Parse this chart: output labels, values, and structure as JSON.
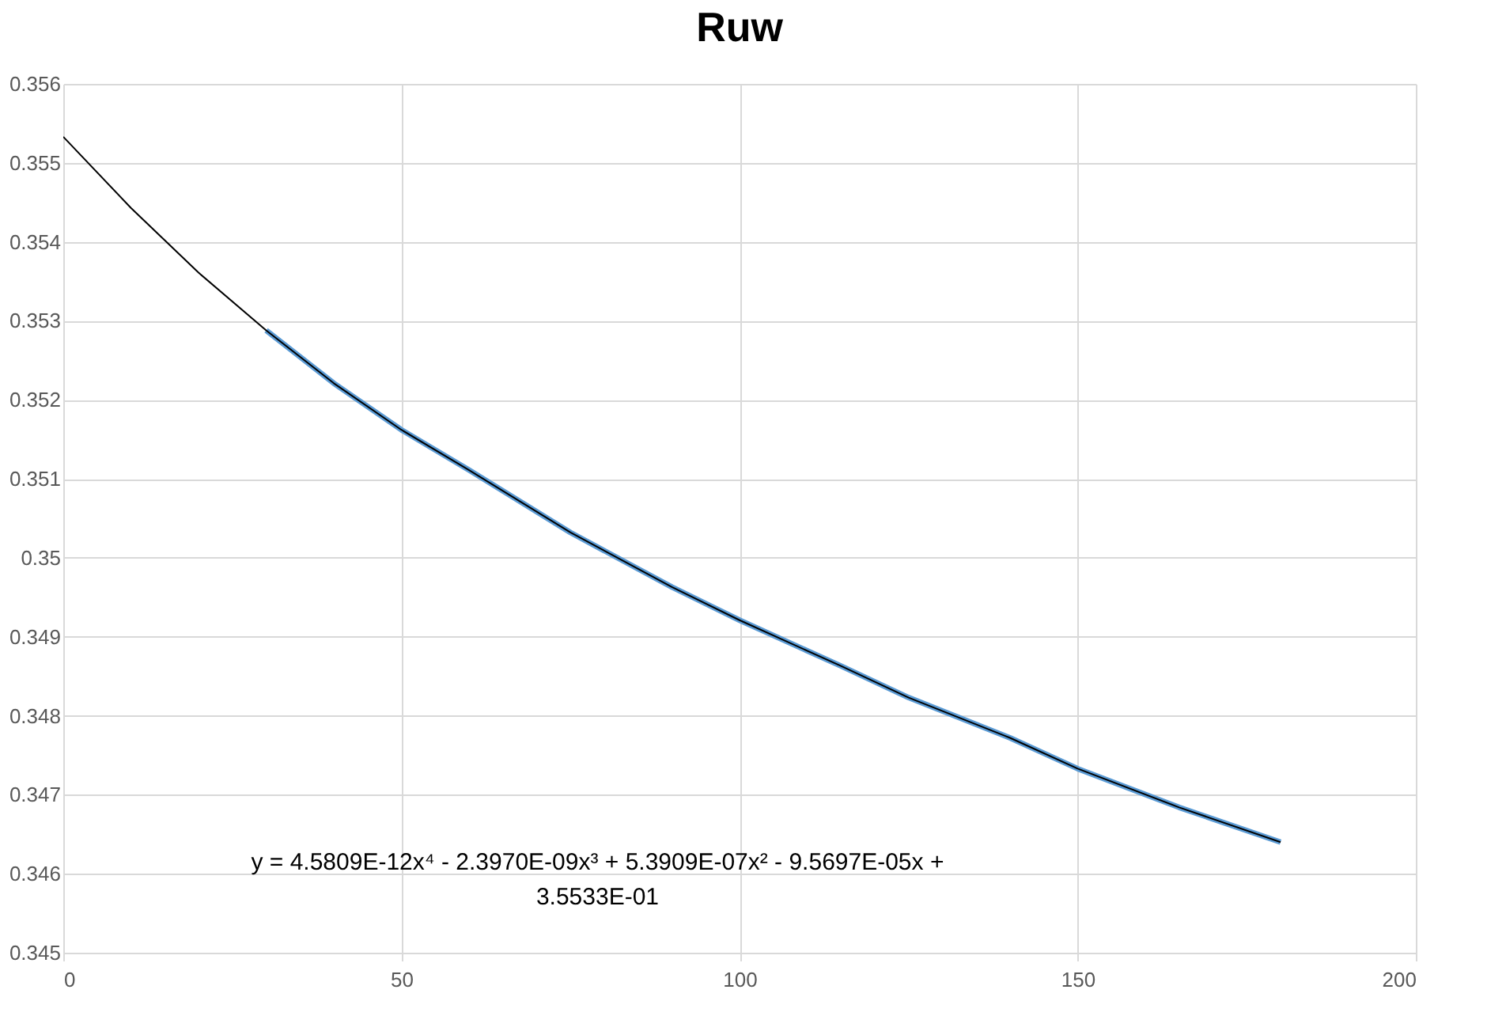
{
  "chart_data": {
    "type": "line",
    "title": "Ruw",
    "series": [
      {
        "color": "#5b9bd5",
        "x": [
          30,
          40,
          50,
          60,
          75,
          90,
          100,
          115,
          125,
          140,
          150,
          165,
          180
        ],
        "values": [
          0.35288,
          0.35221,
          0.35162,
          0.35111,
          0.35032,
          0.34963,
          0.34921,
          0.34863,
          0.34823,
          0.34772,
          0.34733,
          0.34684,
          0.3464
        ]
      },
      {
        "color": "#000000",
        "x": [
          0,
          10,
          20,
          30,
          40,
          50,
          60,
          75,
          90,
          100,
          115,
          125,
          140,
          150,
          165,
          180
        ],
        "values": [
          0.35533,
          0.35443,
          0.35361,
          0.35288,
          0.35221,
          0.35162,
          0.35111,
          0.35032,
          0.34963,
          0.34921,
          0.34863,
          0.34823,
          0.34772,
          0.34733,
          0.34684,
          0.3464
        ]
      }
    ],
    "xlim": [
      0,
      200
    ],
    "xticks": [
      0,
      50,
      100,
      150,
      200
    ],
    "ylim": [
      0.345,
      0.356
    ],
    "yticks": [
      0.345,
      0.346,
      0.347,
      0.348,
      0.349,
      0.35,
      0.351,
      0.352,
      0.353,
      0.354,
      0.355,
      0.356
    ],
    "grid": true,
    "marker": "none",
    "line_style": "solid",
    "annotations": [
      "y = 4.5809E-12x⁴ - 2.3970E-09x³ + 5.3909E-07x² - 9.5697E-05x + 3.5533E-01"
    ]
  }
}
